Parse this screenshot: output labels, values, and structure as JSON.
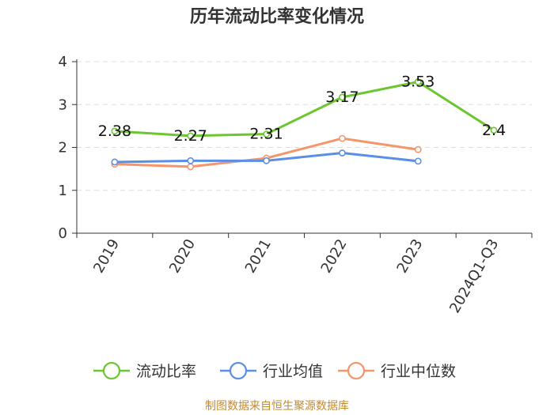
{
  "chart_data": {
    "type": "line",
    "title": "历年流动比率变化情况",
    "categories": [
      "2019",
      "2020",
      "2021",
      "2022",
      "2023",
      "2024Q1-Q3"
    ],
    "ylim": [
      0,
      4
    ],
    "yticks": [
      0,
      1,
      2,
      3,
      4
    ],
    "grid": true,
    "legend_position": "bottom",
    "series": [
      {
        "name": "流动比率",
        "color": "#6cc62f",
        "values": [
          2.38,
          2.27,
          2.31,
          3.17,
          3.53,
          2.4
        ],
        "labels": [
          "2.38",
          "2.27",
          "2.31",
          "3.17",
          "3.53",
          "2.4"
        ]
      },
      {
        "name": "行业均值",
        "color": "#5b8ee6",
        "values": [
          1.66,
          1.69,
          1.69,
          1.87,
          1.68,
          null
        ]
      },
      {
        "name": "行业中位数",
        "color": "#f5956a",
        "values": [
          1.61,
          1.55,
          1.75,
          2.21,
          1.95,
          null
        ]
      }
    ]
  },
  "footer": {
    "source": "制图数据来自恒生聚源数据库"
  }
}
